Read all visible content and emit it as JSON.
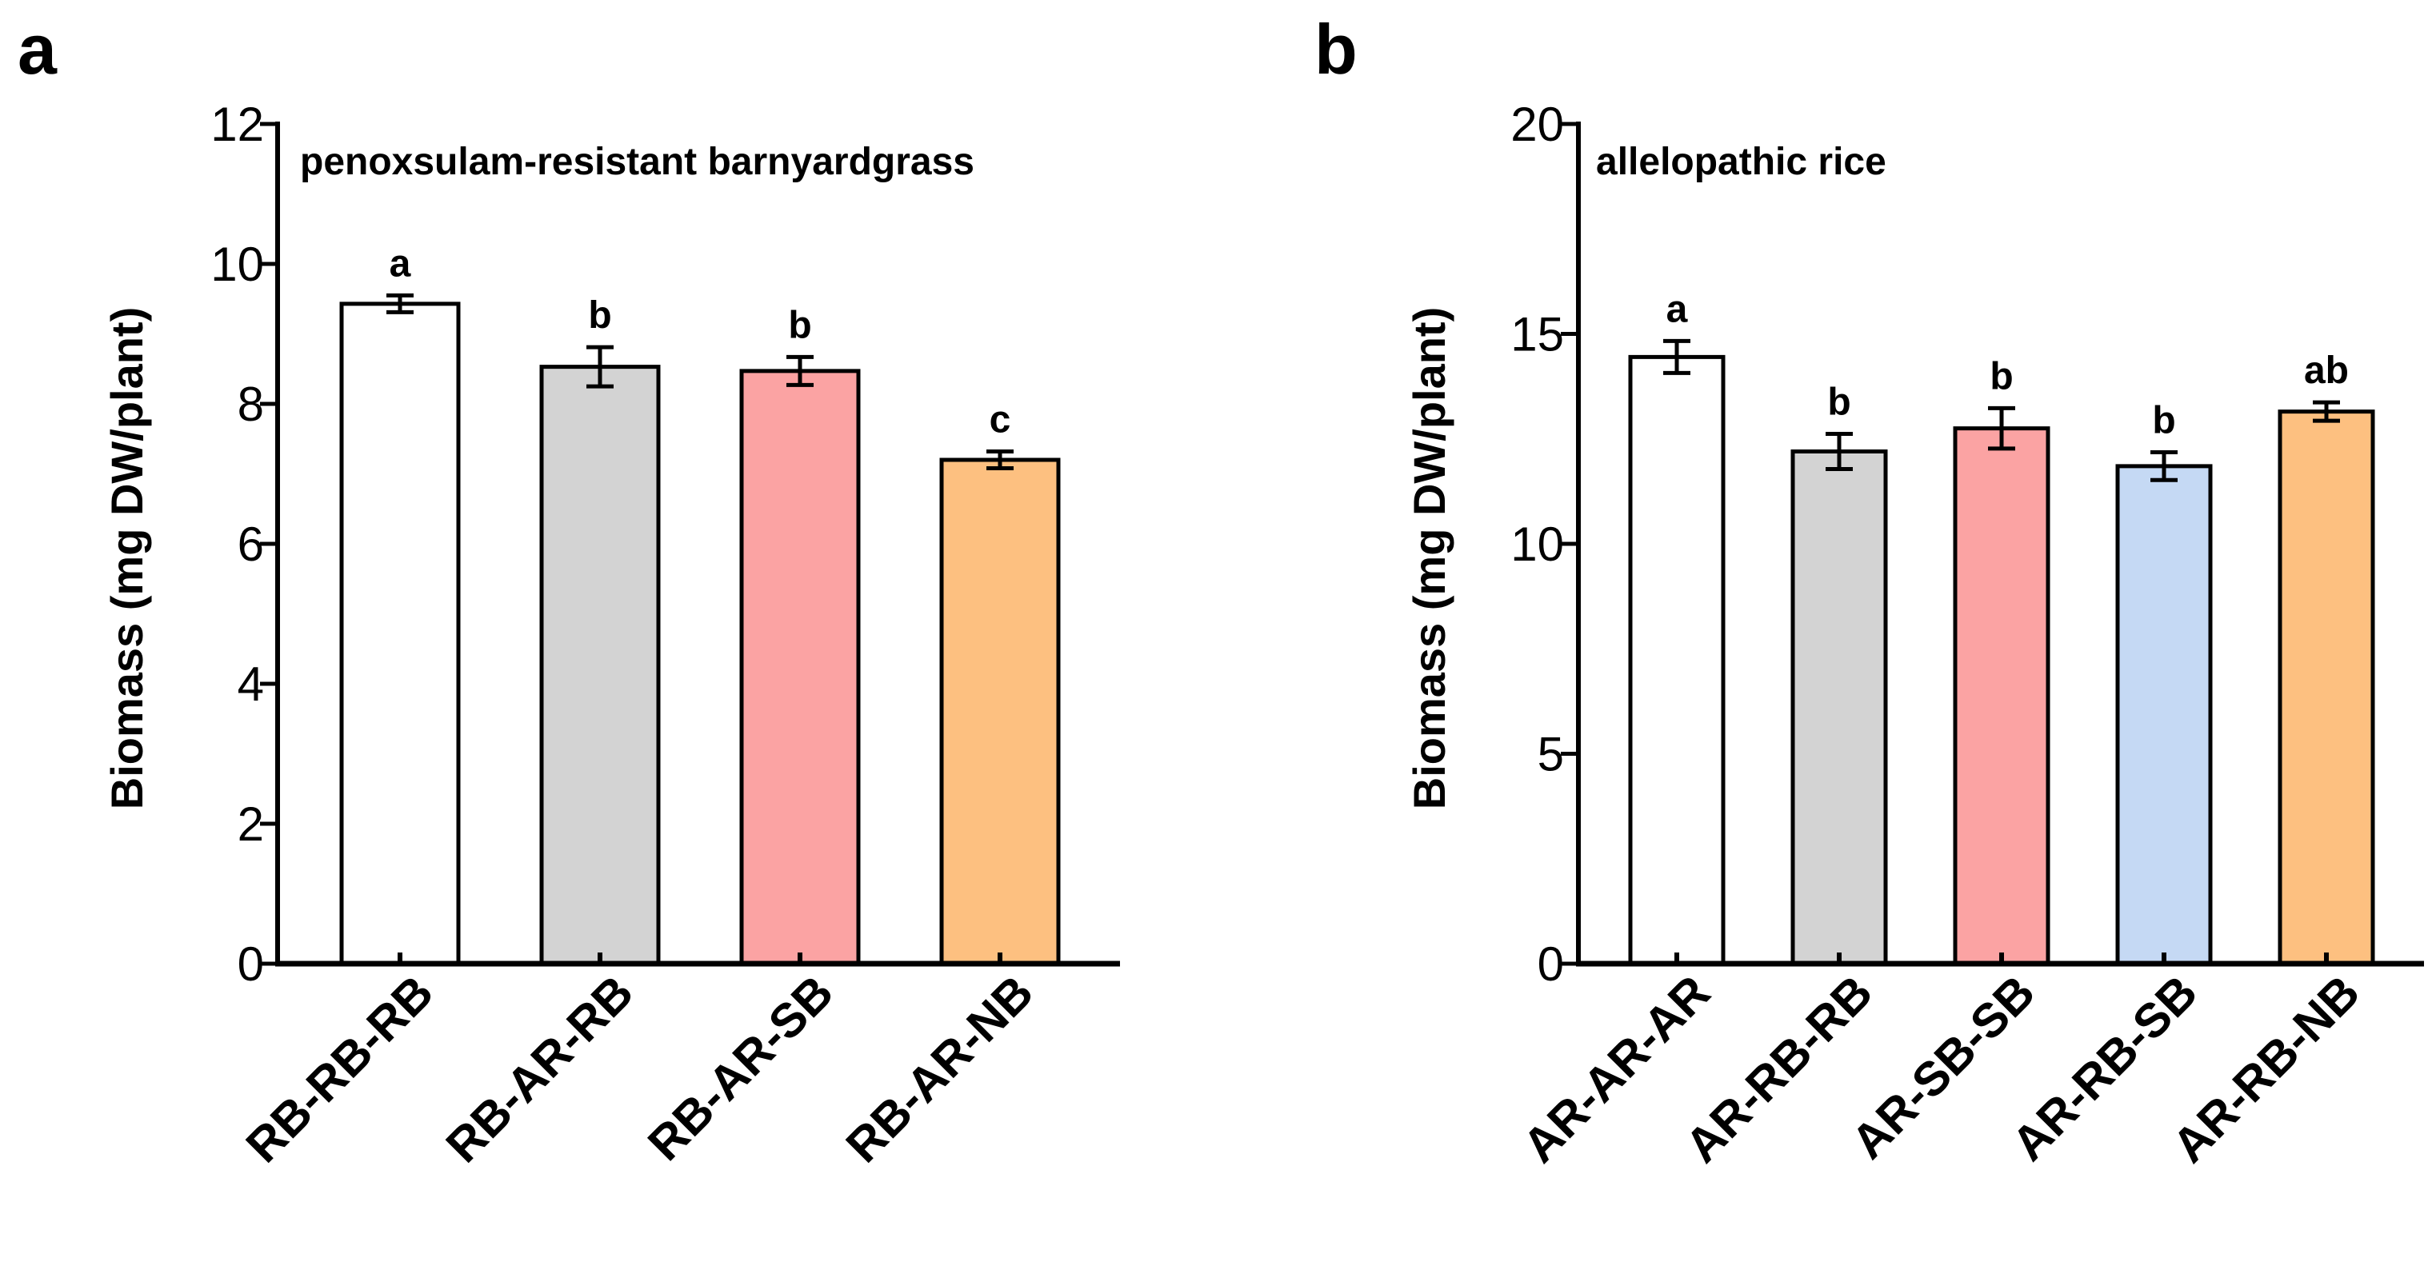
{
  "chart_data": [
    {
      "panel": "a",
      "type": "bar",
      "title": "penoxsulam-resistant barnyardgrass",
      "ylabel": "Biomass (mg DW/plant)",
      "xlabel": "",
      "ylim": [
        0,
        12
      ],
      "yticks": [
        0,
        2,
        4,
        6,
        8,
        10,
        12
      ],
      "categories": [
        "RB-RB-RB",
        "RB-AR-RB",
        "RB-AR-SB",
        "RB-AR-NB"
      ],
      "values": [
        9.43,
        8.53,
        8.47,
        7.2
      ],
      "errors": [
        0.12,
        0.28,
        0.2,
        0.12
      ],
      "significance": [
        "a",
        "b",
        "b",
        "c"
      ],
      "colors": [
        "#ffffff",
        "#d3d3d3",
        "#fba3a3",
        "#fdc080"
      ],
      "grid": false,
      "legend": "none"
    },
    {
      "panel": "b",
      "type": "bar",
      "title": "allelopathic rice",
      "ylabel": "Biomass (mg DW/plant)",
      "xlabel": "",
      "ylim": [
        0,
        20
      ],
      "yticks": [
        0,
        5,
        10,
        15,
        20
      ],
      "categories": [
        "AR-AR-AR",
        "AR-RB-RB",
        "AR-SB-SB",
        "AR-RB-SB",
        "AR-RB-NB"
      ],
      "values": [
        14.45,
        12.2,
        12.75,
        11.85,
        13.15
      ],
      "errors": [
        0.38,
        0.42,
        0.48,
        0.33,
        0.22
      ],
      "significance": [
        "a",
        "b",
        "b",
        "b",
        "ab"
      ],
      "colors": [
        "#ffffff",
        "#d3d3d3",
        "#fba3a3",
        "#c5d9f4",
        "#fdc080"
      ],
      "grid": false,
      "legend": "none"
    }
  ]
}
